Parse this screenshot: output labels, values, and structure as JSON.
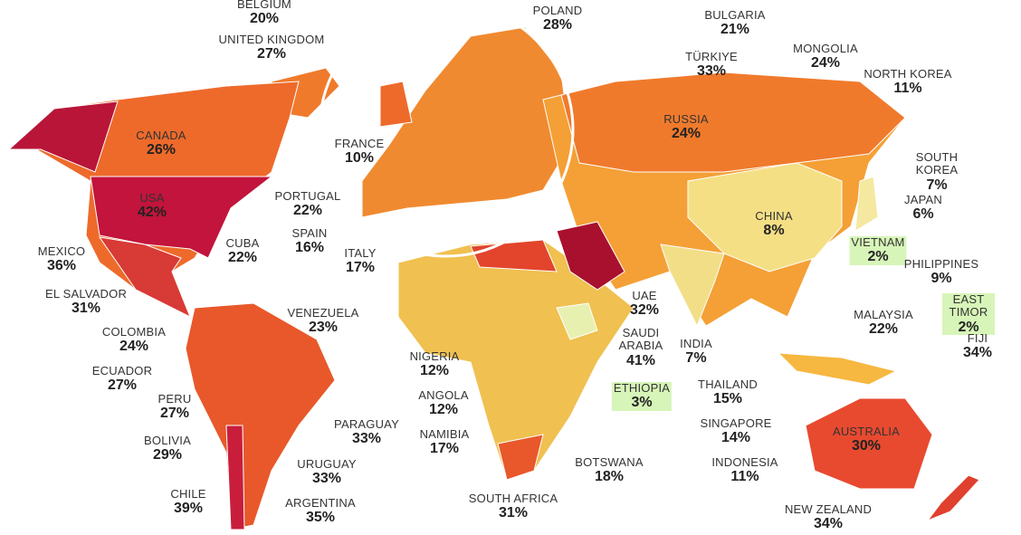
{
  "countries": [
    {
      "name": "BELGIUM",
      "value": "20%"
    },
    {
      "name": "UNITED KINGDOM",
      "value": "27%"
    },
    {
      "name": "POLAND",
      "value": "28%"
    },
    {
      "name": "BULGARIA",
      "value": "21%"
    },
    {
      "name": "TÜRKIYE",
      "value": "33%"
    },
    {
      "name": "MONGOLIA",
      "value": "24%"
    },
    {
      "name": "NORTH KOREA",
      "value": "11%"
    },
    {
      "name": "CANADA",
      "value": "26%"
    },
    {
      "name": "RUSSIA",
      "value": "24%"
    },
    {
      "name": "FRANCE",
      "value": "10%"
    },
    {
      "name": "SOUTH KOREA",
      "value": "7%"
    },
    {
      "name": "USA",
      "value": "42%"
    },
    {
      "name": "PORTUGAL",
      "value": "22%"
    },
    {
      "name": "JAPAN",
      "value": "6%"
    },
    {
      "name": "CHINA",
      "value": "8%"
    },
    {
      "name": "SPAIN",
      "value": "16%"
    },
    {
      "name": "CUBA",
      "value": "22%"
    },
    {
      "name": "VIETNAM",
      "value": "2%"
    },
    {
      "name": "MEXICO",
      "value": "36%"
    },
    {
      "name": "ITALY",
      "value": "17%"
    },
    {
      "name": "PHILIPPINES",
      "value": "9%"
    },
    {
      "name": "EL SALVADOR",
      "value": "31%"
    },
    {
      "name": "EAST TIMOR",
      "value": "2%"
    },
    {
      "name": "VENEZUELA",
      "value": "23%"
    },
    {
      "name": "UAE",
      "value": "32%"
    },
    {
      "name": "MALAYSIA",
      "value": "22%"
    },
    {
      "name": "COLOMBIA",
      "value": "24%"
    },
    {
      "name": "SAUDI ARABIA",
      "value": "41%"
    },
    {
      "name": "INDIA",
      "value": "7%"
    },
    {
      "name": "FIJI",
      "value": "34%"
    },
    {
      "name": "NIGERIA",
      "value": "12%"
    },
    {
      "name": "ECUADOR",
      "value": "27%"
    },
    {
      "name": "THAILAND",
      "value": "15%"
    },
    {
      "name": "ETHIOPIA",
      "value": "3%"
    },
    {
      "name": "ANGOLA",
      "value": "12%"
    },
    {
      "name": "PERU",
      "value": "27%"
    },
    {
      "name": "SINGAPORE",
      "value": "14%"
    },
    {
      "name": "PARAGUAY",
      "value": "33%"
    },
    {
      "name": "AUSTRALIA",
      "value": "30%"
    },
    {
      "name": "NAMIBIA",
      "value": "17%"
    },
    {
      "name": "BOLIVIA",
      "value": "29%"
    },
    {
      "name": "BOTSWANA",
      "value": "18%"
    },
    {
      "name": "INDONESIA",
      "value": "11%"
    },
    {
      "name": "URUGUAY",
      "value": "33%"
    },
    {
      "name": "CHILE",
      "value": "39%"
    },
    {
      "name": "SOUTH AFRICA",
      "value": "31%"
    },
    {
      "name": "ARGENTINA",
      "value": "35%"
    },
    {
      "name": "NEW ZEALAND",
      "value": "34%"
    }
  ]
}
